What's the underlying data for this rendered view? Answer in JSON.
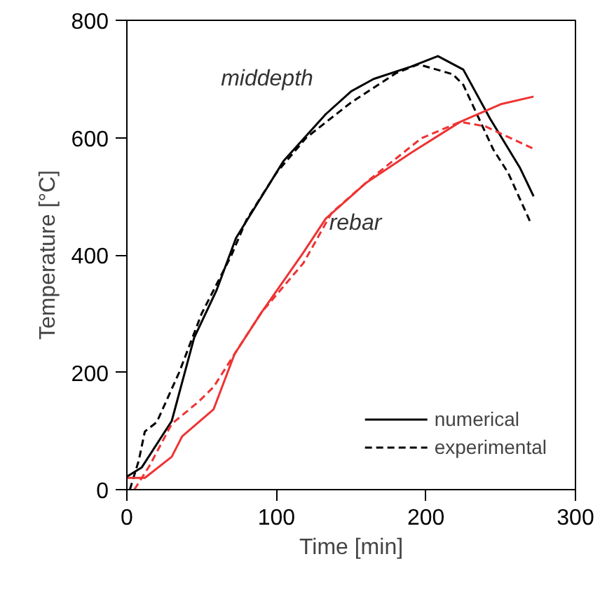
{
  "chart_data": {
    "type": "line",
    "xlabel": "Time [min]",
    "ylabel": "Temperature [°C]",
    "xlim": [
      0,
      300
    ],
    "ylim": [
      0,
      800
    ],
    "xticks": [
      0,
      100,
      200,
      300
    ],
    "yticks": [
      0,
      200,
      400,
      600,
      800
    ],
    "grid": false,
    "legend": "bottom right",
    "marker": "none",
    "series": [
      {
        "name": "numerical",
        "color": "#000000",
        "line_style": "solid",
        "x": [
          0,
          10,
          30,
          45,
          60,
          73,
          105,
          133,
          150,
          165,
          190,
          208,
          225,
          243,
          263,
          272
        ],
        "values": [
          22,
          38,
          117,
          259,
          340,
          429,
          561,
          640,
          679,
          700,
          721,
          739,
          716,
          632,
          548,
          500
        ]
      },
      {
        "name": "experimental",
        "color": "#000000",
        "line_style": "dashed",
        "x": [
          2,
          8,
          12,
          20,
          35,
          50,
          70,
          80,
          100,
          120,
          150,
          180,
          195,
          218,
          225,
          245,
          255,
          270
        ],
        "values": [
          0,
          50,
          99,
          115,
          200,
          300,
          400,
          460,
          540,
          600,
          660,
          710,
          725,
          708,
          690,
          580,
          540,
          455
        ]
      },
      {
        "color": "#ee3333",
        "line_style": "solid",
        "x": [
          0,
          12,
          30,
          37,
          58,
          72,
          90,
          118,
          133,
          160,
          190,
          223,
          250,
          272
        ],
        "values": [
          20,
          20,
          56,
          91,
          137,
          231,
          302,
          404,
          462,
          523,
          574,
          627,
          657,
          670
        ]
      },
      {
        "color": "#ee3333",
        "line_style": "dashed",
        "x": [
          5,
          15,
          30,
          48,
          58,
          77,
          90,
          118,
          137,
          163,
          197,
          223,
          240,
          272
        ],
        "values": [
          0,
          40,
          112,
          150,
          175,
          251,
          302,
          386,
          472,
          530,
          599,
          627,
          619,
          581
        ]
      }
    ],
    "annotations": [
      "middepth",
      "rebar"
    ]
  }
}
